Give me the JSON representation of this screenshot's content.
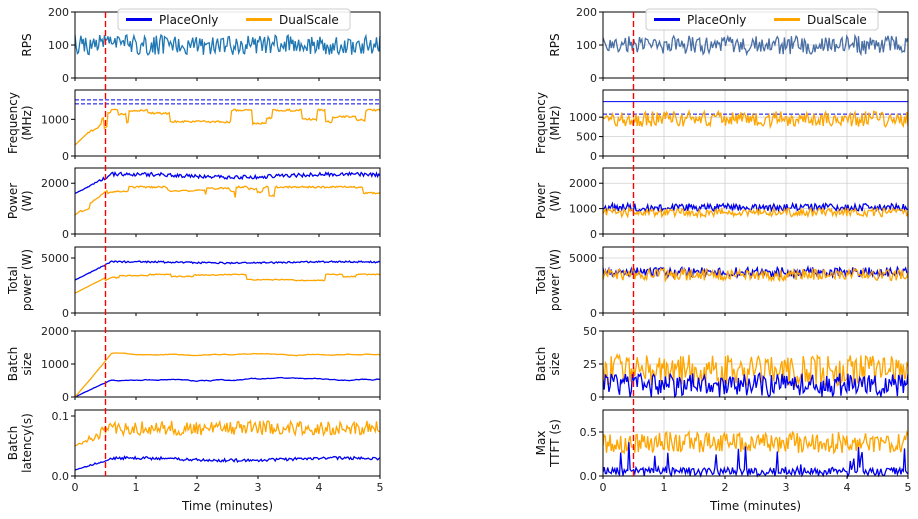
{
  "chart_data": [
    {
      "type": "line",
      "panel": "left",
      "x_label": "Time (minutes)",
      "x_range": [
        0,
        5
      ],
      "x_ticks": [
        "0",
        "1",
        "2",
        "3",
        "4",
        "5"
      ],
      "grid": false,
      "marker_line_x": 0.5,
      "marker_color": "#ff0000",
      "legend": {
        "placement": "top-right",
        "entries": [
          "PlaceOnly",
          "DualScale"
        ]
      },
      "series_colors": {
        "PlaceOnly": "#0000ee",
        "DualScale": "#ffa500"
      },
      "rows": [
        {
          "ylabel": [
            "RPS"
          ],
          "ylim": [
            0,
            200
          ],
          "yticks": [
            "0",
            "100",
            "200"
          ],
          "series": [
            {
              "name": "",
              "color": "#1f77b4",
              "kind": "noise",
              "base": 100,
              "amp": 30,
              "seed": 11
            }
          ]
        },
        {
          "ylabel": [
            "Frequency",
            "(MHz)"
          ],
          "ylim": [
            0,
            1800
          ],
          "yticks": [
            "0",
            "1000"
          ],
          "series": [
            {
              "name": "PlaceOnly",
              "kind": "flat",
              "base": 1530,
              "dashed": true
            },
            {
              "name": "PlaceOnly",
              "kind": "flat",
              "base": 1420,
              "dashed": true
            },
            {
              "name": "DualScale",
              "kind": "step",
              "start": 300,
              "base": 1250,
              "amp": 380,
              "seed": 21
            }
          ]
        },
        {
          "ylabel": [
            "Power",
            "(W)"
          ],
          "ylim": [
            0,
            2600
          ],
          "yticks": [
            "0",
            "2000"
          ],
          "series": [
            {
              "name": "PlaceOnly",
              "kind": "band",
              "start": 1600,
              "base": 2300,
              "amp": 150,
              "seed": 31
            },
            {
              "name": "DualScale",
              "kind": "step",
              "start": 750,
              "base": 1850,
              "amp": 450,
              "seed": 32
            }
          ]
        },
        {
          "ylabel": [
            "Total",
            "power (W)"
          ],
          "ylim": [
            0,
            6000
          ],
          "yticks": [
            "0",
            "5000"
          ],
          "series": [
            {
              "name": "PlaceOnly",
              "kind": "band",
              "start": 3000,
              "base": 4600,
              "amp": 150,
              "seed": 41
            },
            {
              "name": "DualScale",
              "kind": "step",
              "start": 1800,
              "base": 3500,
              "amp": 600,
              "seed": 42
            }
          ]
        },
        {
          "ylabel": [
            "Batch",
            "size"
          ],
          "ylim": [
            0,
            2000
          ],
          "yticks": [
            "0",
            "1000",
            "2000"
          ],
          "series": [
            {
              "name": "PlaceOnly",
              "kind": "smooth",
              "start": 0,
              "base": 520,
              "amp": 90,
              "seed": 51
            },
            {
              "name": "DualScale",
              "kind": "smooth",
              "start": 0,
              "base": 1300,
              "amp": 80,
              "seed": 52
            }
          ]
        },
        {
          "ylabel": [
            "Batch",
            "latency(s)"
          ],
          "ylim": [
            0,
            0.11
          ],
          "yticks": [
            "0.0",
            "0.1"
          ],
          "series": [
            {
              "name": "PlaceOnly",
              "kind": "band",
              "start": 0.01,
              "base": 0.028,
              "amp": 0.005,
              "seed": 61
            },
            {
              "name": "DualScale",
              "kind": "noise",
              "start": 0.05,
              "base": 0.08,
              "amp": 0.012,
              "seed": 62
            }
          ]
        }
      ]
    },
    {
      "type": "line",
      "panel": "right",
      "x_label": "Time (minutes)",
      "x_range": [
        0,
        5
      ],
      "x_ticks": [
        "0",
        "1",
        "2",
        "3",
        "4",
        "5"
      ],
      "grid": true,
      "marker_line_x": 0.5,
      "marker_color": "#ff0000",
      "legend": {
        "placement": "top-right",
        "entries": [
          "PlaceOnly",
          "DualScale"
        ]
      },
      "series_colors": {
        "PlaceOnly": "#0000ee",
        "DualScale": "#ffa500"
      },
      "rows": [
        {
          "ylabel": [
            "RPS"
          ],
          "ylim": [
            0,
            200
          ],
          "yticks": [
            "0",
            "100",
            "200"
          ],
          "series": [
            {
              "name": "",
              "color": "#4a6fa5",
              "kind": "noise",
              "base": 100,
              "amp": 28,
              "seed": 111
            }
          ]
        },
        {
          "ylabel": [
            "Frequency",
            "(MHz)"
          ],
          "ylim": [
            0,
            1700
          ],
          "yticks": [
            "0",
            "500",
            "1000"
          ],
          "series": [
            {
              "name": "PlaceOnly",
              "kind": "flat",
              "base": 1400
            },
            {
              "name": "PlaceOnly",
              "kind": "flat",
              "base": 1080,
              "dashed": true
            },
            {
              "name": "DualScale",
              "kind": "noise",
              "base": 950,
              "amp": 200,
              "seed": 121
            }
          ]
        },
        {
          "ylabel": [
            "Power",
            "(W)"
          ],
          "ylim": [
            0,
            2600
          ],
          "yticks": [
            "0",
            "1000",
            "2000"
          ],
          "series": [
            {
              "name": "PlaceOnly",
              "kind": "noise",
              "base": 1050,
              "amp": 150,
              "seed": 131
            },
            {
              "name": "DualScale",
              "kind": "noise",
              "base": 850,
              "amp": 170,
              "seed": 132
            }
          ]
        },
        {
          "ylabel": [
            "Total",
            "power (W)"
          ],
          "ylim": [
            0,
            6000
          ],
          "yticks": [
            "0",
            "5000"
          ],
          "series": [
            {
              "name": "PlaceOnly",
              "kind": "noise",
              "base": 3700,
              "amp": 450,
              "seed": 141
            },
            {
              "name": "DualScale",
              "kind": "noise",
              "base": 3500,
              "amp": 550,
              "seed": 142
            }
          ]
        },
        {
          "ylabel": [
            "Batch",
            "size"
          ],
          "ylim": [
            0,
            50
          ],
          "yticks": [
            "0",
            "25",
            "50"
          ],
          "series": [
            {
              "name": "DualScale",
              "kind": "noise",
              "base": 20,
              "amp": 12,
              "seed": 151
            },
            {
              "name": "PlaceOnly",
              "kind": "noise",
              "base": 9,
              "amp": 9,
              "seed": 152
            }
          ]
        },
        {
          "ylabel": [
            "Max",
            "TTFT (s)"
          ],
          "ylim": [
            0,
            0.75
          ],
          "yticks": [
            "0.0",
            "0.5"
          ],
          "series": [
            {
              "name": "DualScale",
              "kind": "noise",
              "base": 0.38,
              "amp": 0.12,
              "seed": 161
            },
            {
              "name": "PlaceOnly",
              "kind": "spiky",
              "base": 0.1,
              "amp": 0.35,
              "seed": 162
            }
          ]
        }
      ]
    }
  ]
}
